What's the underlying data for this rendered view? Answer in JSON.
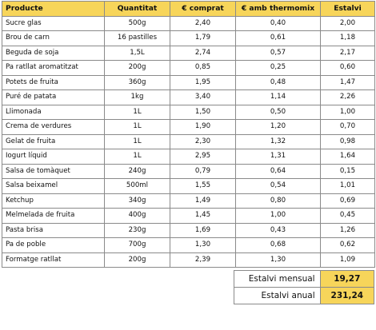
{
  "colors": {
    "header_bg": "#f7d55a",
    "highlight_bg": "#f7d55a",
    "border": "#8a8a8a"
  },
  "table": {
    "headers": [
      "Producte",
      "Quantitat",
      "€ comprat",
      "€ amb thermomix",
      "Estalvi"
    ],
    "rows": [
      [
        "Sucre glas",
        "500g",
        "2,40",
        "0,40",
        "2,00"
      ],
      [
        "Brou de carn",
        "16 pastilles",
        "1,79",
        "0,61",
        "1,18"
      ],
      [
        "Beguda de soja",
        "1,5L",
        "2,74",
        "0,57",
        "2,17"
      ],
      [
        "Pa ratllat aromatitzat",
        "200g",
        "0,85",
        "0,25",
        "0,60"
      ],
      [
        "Potets de fruita",
        "360g",
        "1,95",
        "0,48",
        "1,47"
      ],
      [
        "Puré de patata",
        "1kg",
        "3,40",
        "1,14",
        "2,26"
      ],
      [
        "Llimonada",
        "1L",
        "1,50",
        "0,50",
        "1,00"
      ],
      [
        "Crema de verdures",
        "1L",
        "1,90",
        "1,20",
        "0,70"
      ],
      [
        "Gelat de fruita",
        "1L",
        "2,30",
        "1,32",
        "0,98"
      ],
      [
        "Iogurt líquid",
        "1L",
        "2,95",
        "1,31",
        "1,64"
      ],
      [
        "Salsa de tomàquet",
        "240g",
        "0,79",
        "0,64",
        "0,15"
      ],
      [
        "Salsa beixamel",
        "500ml",
        "1,55",
        "0,54",
        "1,01"
      ],
      [
        "Ketchup",
        "340g",
        "1,49",
        "0,80",
        "0,69"
      ],
      [
        "Melmelada de fruita",
        "400g",
        "1,45",
        "1,00",
        "0,45"
      ],
      [
        "Pasta brisa",
        "230g",
        "1,69",
        "0,43",
        "1,26"
      ],
      [
        "Pa de poble",
        "700g",
        "1,30",
        "0,68",
        "0,62"
      ],
      [
        "Formatge ratllat",
        "200g",
        "2,39",
        "1,30",
        "1,09"
      ]
    ]
  },
  "summary": {
    "monthly_label": "Estalvi mensual",
    "monthly_value": "19,27",
    "annual_label": "Estalvi anual",
    "annual_value": "231,24"
  }
}
